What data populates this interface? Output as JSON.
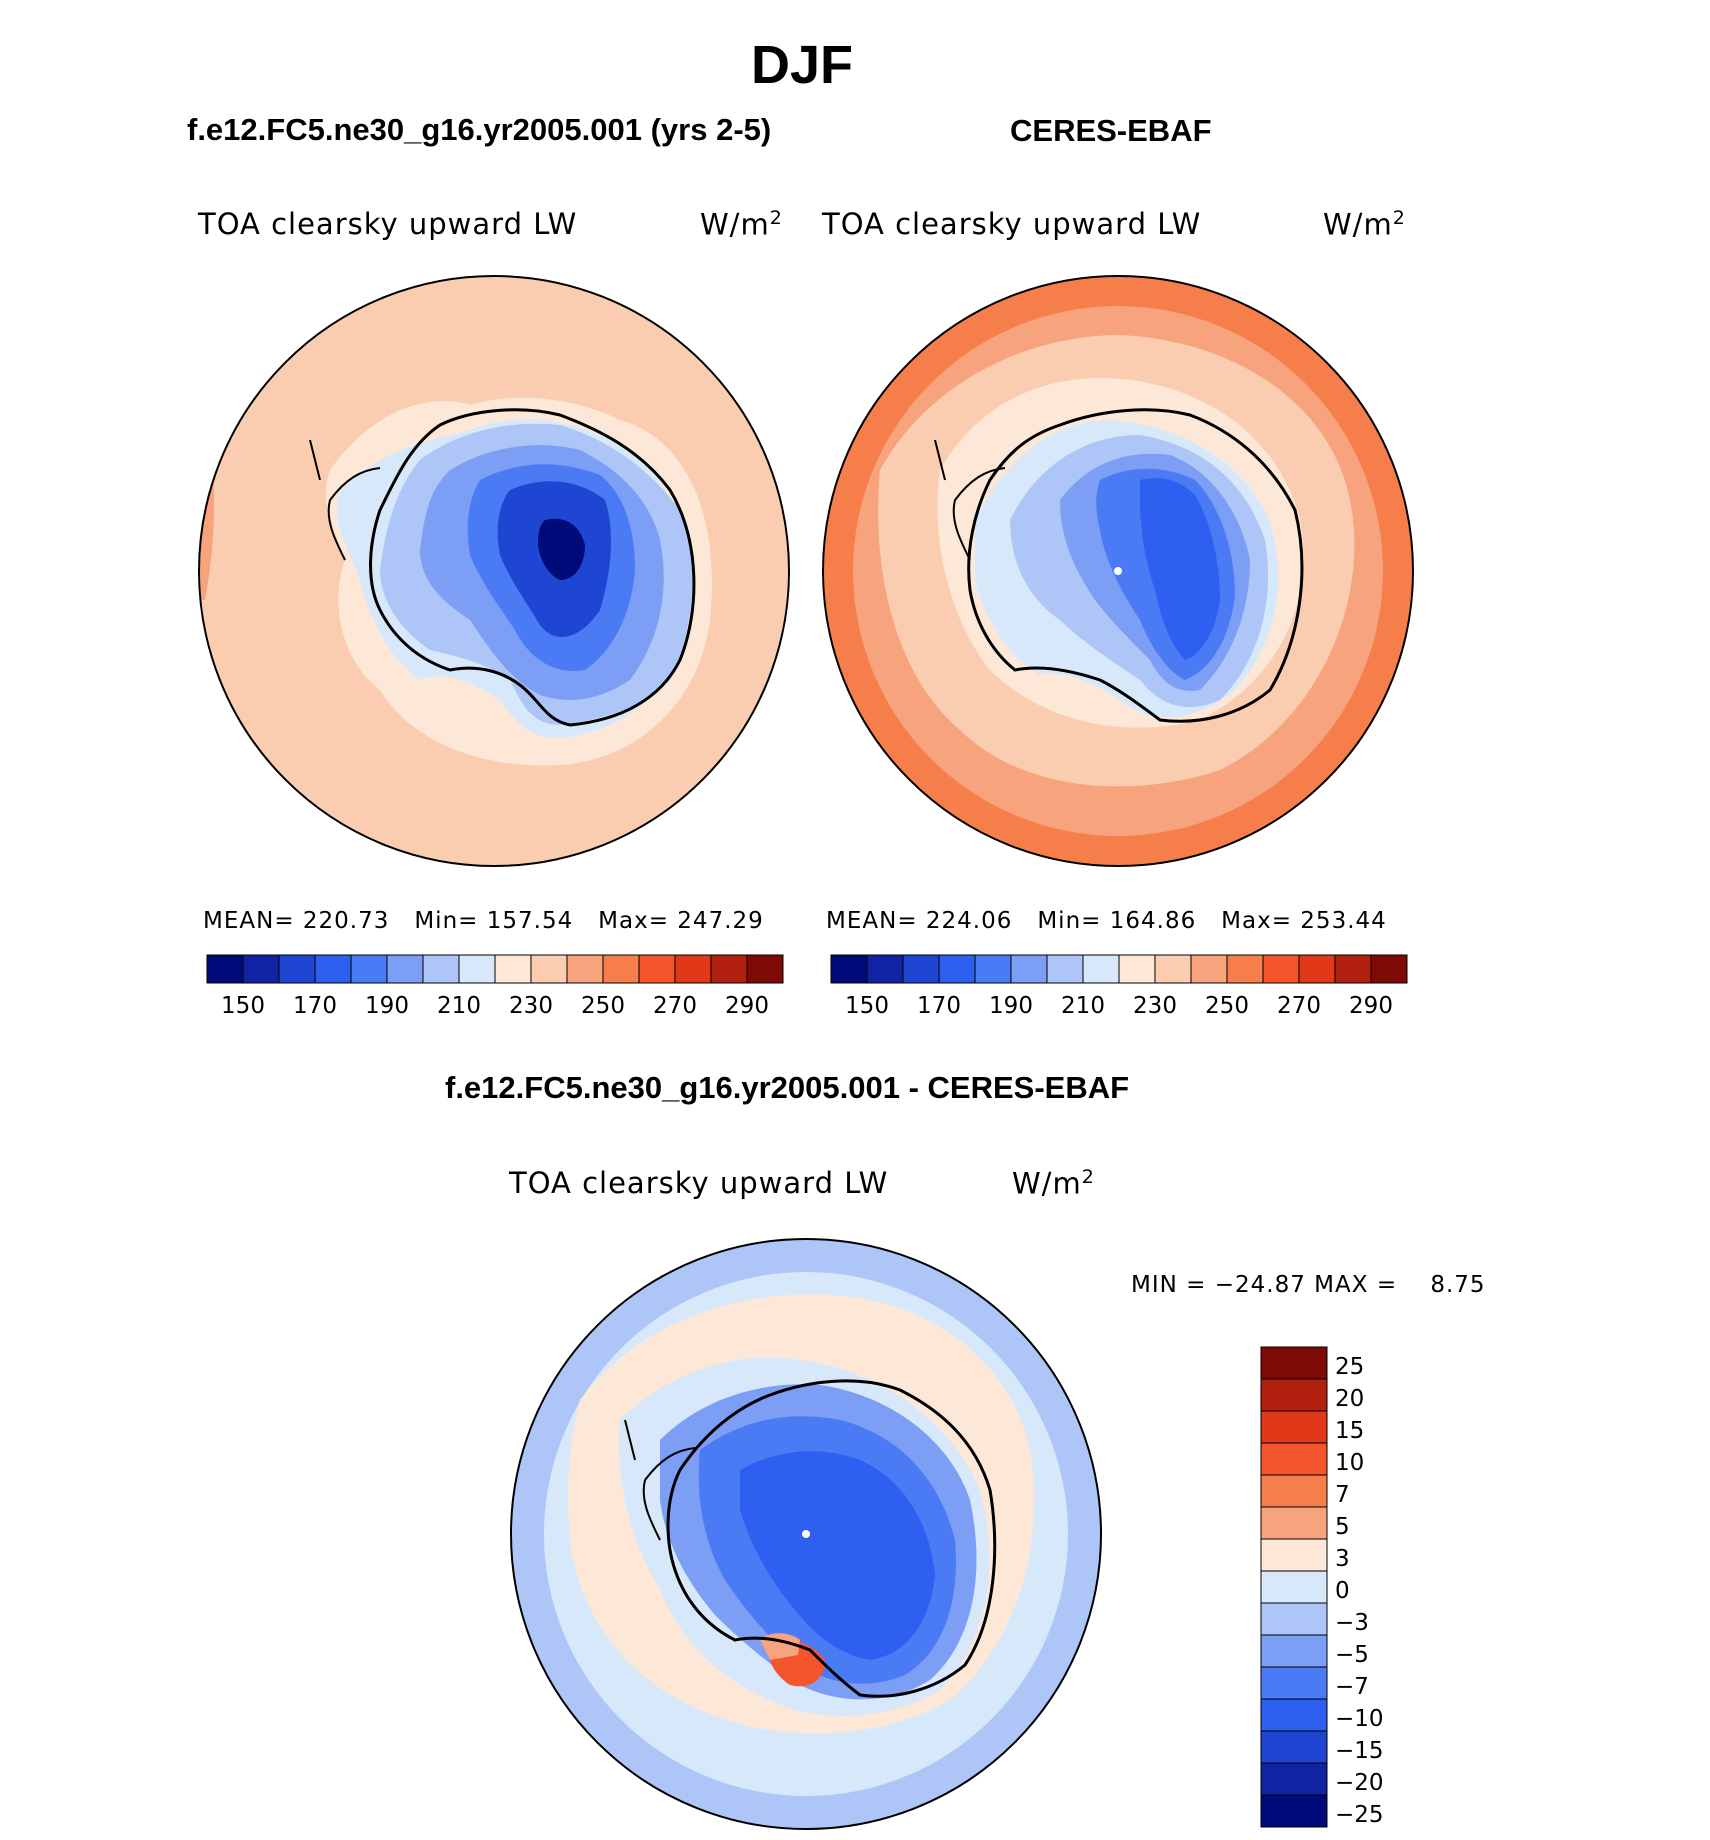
{
  "figure": {
    "title": "DJF",
    "left_panel_title": "f.e12.FC5.ne30_g16.yr2005.001 (yrs 2-5)",
    "right_panel_title": "CERES-EBAF",
    "diff_panel_title": "f.e12.FC5.ne30_g16.yr2005.001 - CERES-EBAF"
  },
  "colors": {
    "abs_levels": [
      "#000a78",
      "#0f23a3",
      "#1e46d2",
      "#2d5ff0",
      "#4b7af5",
      "#7d9ef5",
      "#aec6f7",
      "#d8e8fb",
      "#fde8d8",
      "#fbcdb0",
      "#f7a37d",
      "#f67e4b",
      "#f4552d",
      "#e03819",
      "#b2200f",
      "#7d0a05"
    ],
    "diff_levels": [
      "#7d0a05",
      "#b2200f",
      "#e03819",
      "#f4552d",
      "#f67e4b",
      "#f7a37d",
      "#fde8d8",
      "#d8e8fb",
      "#aec6f7",
      "#7d9ef5",
      "#4b7af5",
      "#2d5ff0",
      "#1e46d2",
      "#0f23a3",
      "#000a78"
    ],
    "land": "#000000"
  },
  "chart_data": [
    {
      "type": "heatmap",
      "projection": "south-polar-stereographic",
      "field_name": "TOA clearsky upward LW",
      "units_text": "W/m",
      "units_sup": "2",
      "mean_label": "MEAN=",
      "mean_value": "220.73",
      "min_label": "Min=",
      "min_value": "157.54",
      "max_label": "Max=",
      "max_value": "247.29",
      "colorbar_tick_labels": [
        "150",
        "170",
        "190",
        "210",
        "230",
        "250",
        "270",
        "290"
      ]
    },
    {
      "type": "heatmap",
      "projection": "south-polar-stereographic",
      "field_name": "TOA clearsky upward LW",
      "units_text": "W/m",
      "units_sup": "2",
      "mean_label": "MEAN=",
      "mean_value": "224.06",
      "min_label": "Min=",
      "min_value": "164.86",
      "max_label": "Max=",
      "max_value": "253.44",
      "colorbar_tick_labels": [
        "150",
        "170",
        "190",
        "210",
        "230",
        "250",
        "270",
        "290"
      ]
    },
    {
      "type": "heatmap",
      "projection": "south-polar-stereographic",
      "field_name": "TOA clearsky upward LW",
      "units_text": "W/m",
      "units_sup": "2",
      "min_label": "MIN =",
      "min_value": "−24.87",
      "max_label": "MAX =",
      "max_value": "8.75",
      "colorbar_tick_labels": [
        "25",
        "20",
        "15",
        "10",
        "7",
        "5",
        "3",
        "0",
        "−3",
        "−5",
        "−7",
        "−10",
        "−15",
        "−20",
        "−25"
      ]
    }
  ]
}
